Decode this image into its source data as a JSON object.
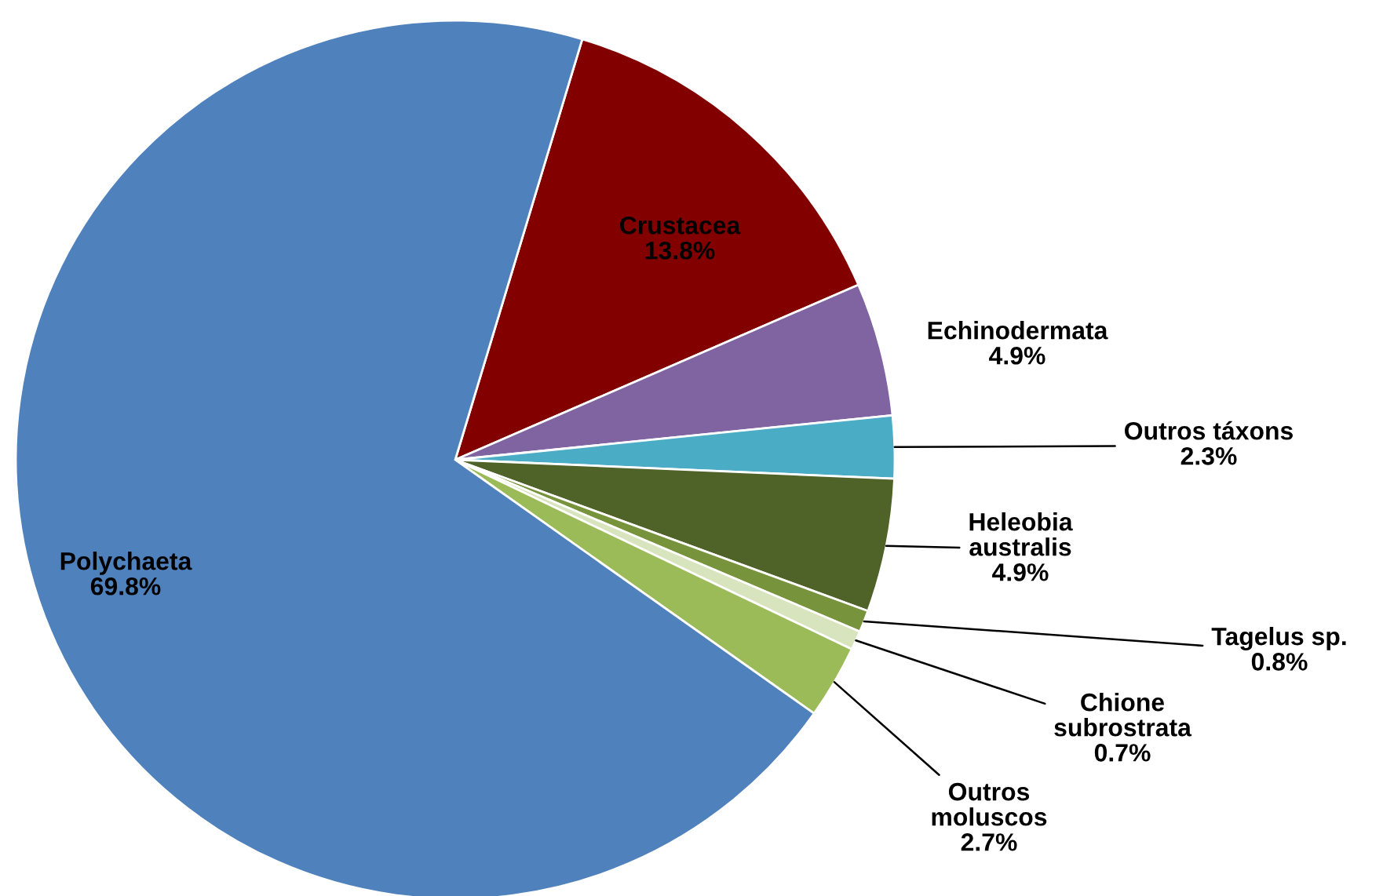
{
  "chart_data": {
    "type": "pie",
    "categories": [
      "Crustacea",
      "Echinodermata",
      "Outros táxons",
      "Heleobia australis",
      "Tagelus sp.",
      "Chione subrostrata",
      "Outros moluscos",
      "Polychaeta"
    ],
    "values": [
      13.8,
      4.9,
      2.3,
      4.9,
      0.8,
      0.7,
      2.7,
      69.8
    ],
    "value_labels": [
      "13.8%",
      "4.9%",
      "2.3%",
      "4.9%",
      "0.8%",
      "0.7%",
      "2.7%",
      "69.8%"
    ],
    "colors": [
      "#820000",
      "#8064a2",
      "#4bacc6",
      "#4f6228",
      "#77933c",
      "#d7e4bd",
      "#9bbb59",
      "#4f81bd"
    ]
  }
}
